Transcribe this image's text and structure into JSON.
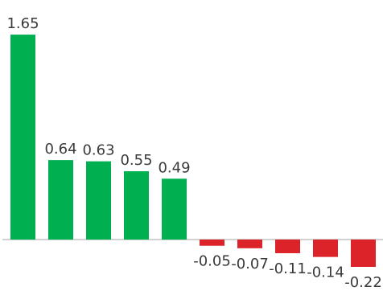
{
  "chart_data": {
    "type": "bar",
    "title": "",
    "xlabel": "",
    "ylabel": "",
    "values": [
      1.65,
      0.64,
      0.63,
      0.55,
      0.49,
      -0.05,
      -0.07,
      -0.11,
      -0.14,
      -0.22
    ],
    "labels": [
      "1.65",
      "0.64",
      "0.63",
      "0.55",
      "0.49",
      "-0.05",
      "-0.07",
      "-0.11",
      "-0.14",
      "-0.22"
    ],
    "ylim": [
      -0.22,
      1.65
    ],
    "grid": false,
    "legend": "none",
    "colors": {
      "positive": "#00b050",
      "negative": "#dc2329",
      "baseline": "#b8b8b8",
      "label": "#3a3a3a"
    }
  }
}
